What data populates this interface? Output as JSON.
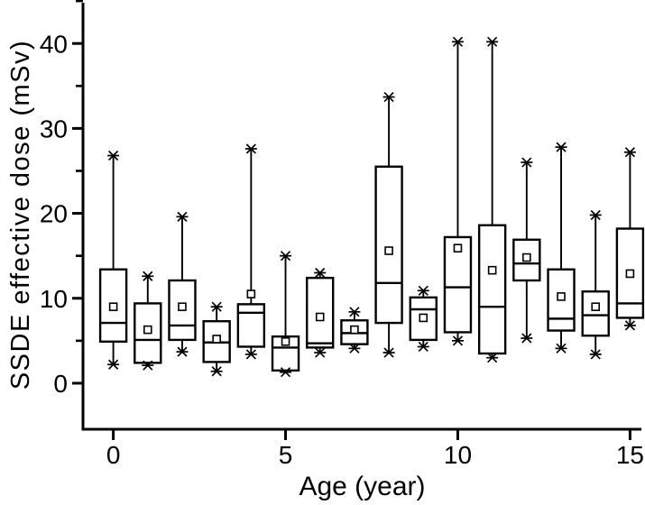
{
  "figure": {
    "background": "#ffffff",
    "ink": "#000000"
  },
  "chart_data": {
    "type": "box",
    "title": "",
    "xlabel": "Age (year)",
    "ylabel": "SSDE effective dose (mSv)",
    "x_ticks": [
      0,
      5,
      10,
      15
    ],
    "x_tick_labels": [
      "0",
      "5",
      "10",
      "15"
    ],
    "y_ticks": [
      0,
      10,
      20,
      30,
      40
    ],
    "y_tick_labels": [
      "0",
      "10",
      "20",
      "30",
      "40"
    ],
    "y_minor_ticks": [
      5,
      15,
      25,
      35,
      45
    ],
    "xlim": [
      -0.88,
      15.33
    ],
    "ylim": [
      -5.42,
      44.8
    ],
    "grid": false,
    "legend": null,
    "mean_marker": "open-square",
    "whisker_cap": "x-star",
    "box_fill": "#ffffff",
    "box_stroke": "#000000",
    "boxes": [
      {
        "age": 0,
        "whisker_low": 2.2,
        "q1": 4.9,
        "median": 7.1,
        "q3": 13.4,
        "whisker_high": 26.8,
        "mean": 9.0
      },
      {
        "age": 1,
        "whisker_low": 2.1,
        "q1": 2.4,
        "median": 5.1,
        "q3": 9.4,
        "whisker_high": 12.6,
        "mean": 6.3
      },
      {
        "age": 2,
        "whisker_low": 3.7,
        "q1": 5.1,
        "median": 6.8,
        "q3": 12.1,
        "whisker_high": 19.6,
        "mean": 9.0
      },
      {
        "age": 3,
        "whisker_low": 1.4,
        "q1": 2.5,
        "median": 4.8,
        "q3": 7.3,
        "whisker_high": 9.0,
        "mean": 5.2
      },
      {
        "age": 4,
        "whisker_low": 3.4,
        "q1": 4.3,
        "median": 8.3,
        "q3": 9.3,
        "whisker_high": 27.6,
        "mean": 10.5
      },
      {
        "age": 5,
        "whisker_low": 1.3,
        "q1": 1.5,
        "median": 4.2,
        "q3": 5.5,
        "whisker_high": 15.0,
        "mean": 4.9
      },
      {
        "age": 6,
        "whisker_low": 3.6,
        "q1": 4.2,
        "median": 4.7,
        "q3": 12.4,
        "whisker_high": 13.0,
        "mean": 7.8
      },
      {
        "age": 7,
        "whisker_low": 4.1,
        "q1": 4.6,
        "median": 5.9,
        "q3": 7.4,
        "whisker_high": 8.4,
        "mean": 6.3
      },
      {
        "age": 8,
        "whisker_low": 3.6,
        "q1": 7.1,
        "median": 11.8,
        "q3": 25.5,
        "whisker_high": 33.7,
        "mean": 15.6
      },
      {
        "age": 9,
        "whisker_low": 4.3,
        "q1": 5.1,
        "median": 8.7,
        "q3": 10.1,
        "whisker_high": 10.9,
        "mean": 7.7
      },
      {
        "age": 10,
        "whisker_low": 5.0,
        "q1": 6.0,
        "median": 11.3,
        "q3": 17.2,
        "whisker_high": 40.2,
        "mean": 15.9
      },
      {
        "age": 11,
        "whisker_low": 3.0,
        "q1": 3.5,
        "median": 9.0,
        "q3": 18.6,
        "whisker_high": 40.2,
        "mean": 13.3
      },
      {
        "age": 12,
        "whisker_low": 5.3,
        "q1": 12.1,
        "median": 14.1,
        "q3": 16.9,
        "whisker_high": 26.0,
        "mean": 14.8
      },
      {
        "age": 13,
        "whisker_low": 4.1,
        "q1": 6.2,
        "median": 7.6,
        "q3": 13.4,
        "whisker_high": 27.8,
        "mean": 10.2
      },
      {
        "age": 14,
        "whisker_low": 3.4,
        "q1": 5.6,
        "median": 8.0,
        "q3": 10.8,
        "whisker_high": 19.8,
        "mean": 9.0
      },
      {
        "age": 15,
        "whisker_low": 6.8,
        "q1": 7.7,
        "median": 9.4,
        "q3": 18.2,
        "whisker_high": 27.2,
        "mean": 12.9
      }
    ]
  }
}
